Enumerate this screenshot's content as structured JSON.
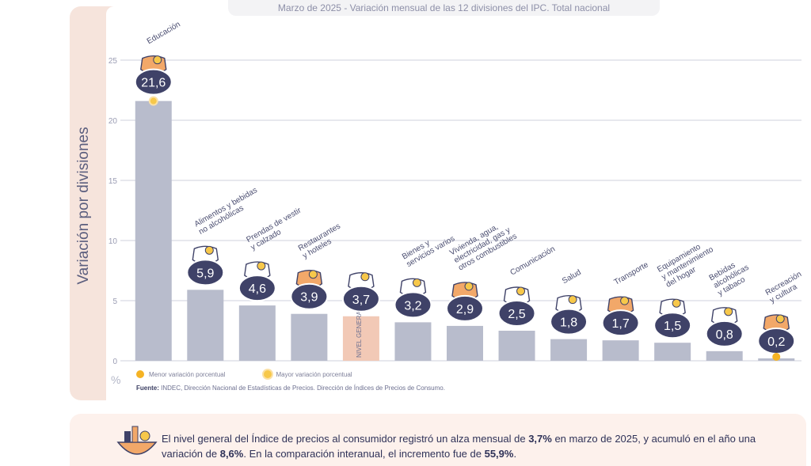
{
  "header": {
    "date": "Marzo de 2025",
    "title": " - Variación mensual de las 12 divisiones del IPC. Total nacional"
  },
  "y_axis_label": "Variación por divisiones",
  "unit": "%",
  "legend": {
    "min_label": "Menor variación porcentual",
    "max_label": "Mayor variación porcentual"
  },
  "source": {
    "prefix": "Fuente:",
    "text": " INDEC, Dirección Nacional de Estadísticas de Precios. Dirección de Índices de Precios de Consumo."
  },
  "general_label": "NIVEL GENERAL",
  "summary": {
    "t1": "El nivel general del Índice de precios al consumidor registró un alza mensual de ",
    "v1": "3,7%",
    "t2": " en marzo de 2025, y acumuló en el año una variación de ",
    "v2": "8,6%",
    "t3": ". En la comparación interanual, el incremento fue de ",
    "v3": "55,9%",
    "t4": "."
  },
  "colors": {
    "bar": "#b8bccc",
    "general_bar": "#f2c9b6",
    "badge": "#3f4268",
    "grid": "#cfd1dd",
    "highlight": "#f5b324"
  },
  "chart_data": {
    "type": "bar",
    "ylim": [
      0,
      25
    ],
    "yticks": [
      0,
      5,
      10,
      15,
      20,
      25
    ],
    "categories": [
      {
        "lines": [
          "Educación"
        ],
        "value": 21.6,
        "display": "21,6",
        "icon": "books-icon",
        "marker": "max"
      },
      {
        "lines": [
          "Alimentos y bebidas",
          "no alcohólicas"
        ],
        "value": 5.9,
        "display": "5,9",
        "icon": "food-icon"
      },
      {
        "lines": [
          "Prendas de vestir",
          "y calzado"
        ],
        "value": 4.6,
        "display": "4,6",
        "icon": "tshirt-icon"
      },
      {
        "lines": [
          "Restaurantes",
          "y hoteles"
        ],
        "value": 3.9,
        "display": "3,9",
        "icon": "plate-icon"
      },
      {
        "lines": [],
        "value": 3.7,
        "display": "3,7",
        "icon": "basket-icon",
        "general": true
      },
      {
        "lines": [
          "Bienes y",
          "servicios varios"
        ],
        "value": 3.2,
        "display": "3,2",
        "icon": "comb-icon"
      },
      {
        "lines": [
          "Vivienda, agua,",
          "electricidad, gas y",
          "otros combustibles"
        ],
        "value": 2.9,
        "display": "2,9",
        "icon": "bulb-icon"
      },
      {
        "lines": [
          "Comunicación"
        ],
        "value": 2.5,
        "display": "2,5",
        "icon": "phone-icon"
      },
      {
        "lines": [
          "Salud"
        ],
        "value": 1.8,
        "display": "1,8",
        "icon": "health-icon"
      },
      {
        "lines": [
          "Transporte"
        ],
        "value": 1.7,
        "display": "1,7",
        "icon": "car-icon"
      },
      {
        "lines": [
          "Equipamiento",
          "y mantenimiento",
          "del hogar"
        ],
        "value": 1.5,
        "display": "1,5",
        "icon": "appliance-icon"
      },
      {
        "lines": [
          "Bebidas",
          "alcohólicas",
          "y tabaco"
        ],
        "value": 0.8,
        "display": "0,8",
        "icon": "bottle-icon"
      },
      {
        "lines": [
          "Recreación",
          "y cultura"
        ],
        "value": 0.2,
        "display": "0,2",
        "icon": "umbrella-icon",
        "marker": "min"
      }
    ]
  }
}
